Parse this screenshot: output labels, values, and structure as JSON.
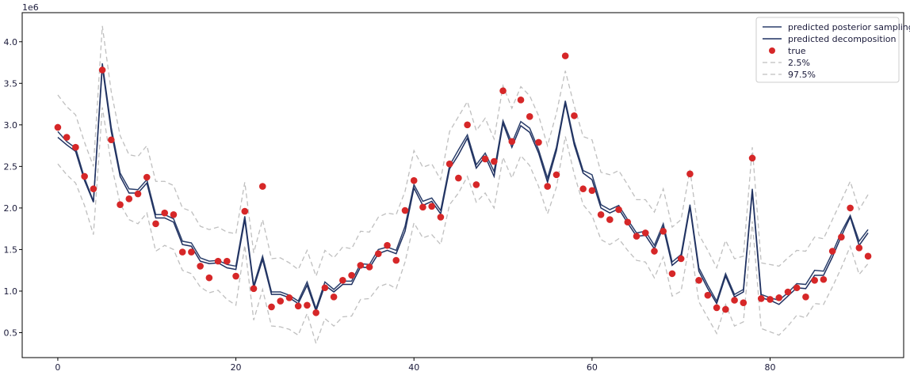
{
  "chart_data": {
    "type": "line",
    "title": "",
    "xlabel": "",
    "ylabel": "",
    "y_offset_label": "1e6",
    "xlim": [
      -4,
      95
    ],
    "ylim": [
      0.2,
      4.35
    ],
    "xticks": [
      0,
      20,
      40,
      60,
      80
    ],
    "yticks": [
      0.5,
      1.0,
      1.5,
      2.0,
      2.5,
      3.0,
      3.5,
      4.0
    ],
    "grid": false,
    "legend_position": "top-right",
    "x": [
      0,
      1,
      2,
      3,
      4,
      5,
      6,
      7,
      8,
      9,
      10,
      11,
      12,
      13,
      14,
      15,
      16,
      17,
      18,
      19,
      20,
      21,
      22,
      23,
      24,
      25,
      26,
      27,
      28,
      29,
      30,
      31,
      32,
      33,
      34,
      35,
      36,
      37,
      38,
      39,
      40,
      41,
      42,
      43,
      44,
      45,
      46,
      47,
      48,
      49,
      50,
      51,
      52,
      53,
      54,
      55,
      56,
      57,
      58,
      59,
      60,
      61,
      62,
      63,
      64,
      65,
      66,
      67,
      68,
      69,
      70,
      71,
      72,
      73,
      74,
      75,
      76,
      77,
      78,
      79,
      80,
      81,
      82,
      83,
      84,
      85,
      86,
      87,
      88,
      89,
      90,
      91
    ],
    "series": [
      {
        "name": "predicted posterior sampling",
        "kind": "line",
        "color": "#2b3f6b",
        "values": [
          2.92,
          2.8,
          2.72,
          2.36,
          2.08,
          3.74,
          2.97,
          2.42,
          2.23,
          2.22,
          2.34,
          1.92,
          1.92,
          1.87,
          1.6,
          1.58,
          1.4,
          1.36,
          1.37,
          1.32,
          1.3,
          1.9,
          1.07,
          1.42,
          0.99,
          0.99,
          0.95,
          0.88,
          1.11,
          0.79,
          1.11,
          1.02,
          1.12,
          1.12,
          1.33,
          1.32,
          1.5,
          1.53,
          1.49,
          1.78,
          2.28,
          2.08,
          2.12,
          1.97,
          2.51,
          2.7,
          2.88,
          2.52,
          2.66,
          2.44,
          3.05,
          2.78,
          3.04,
          2.96,
          2.7,
          2.36,
          2.73,
          3.29,
          2.8,
          2.45,
          2.4,
          2.04,
          1.98,
          2.03,
          1.86,
          1.7,
          1.72,
          1.55,
          1.81,
          1.35,
          1.44,
          2.04,
          1.28,
          1.07,
          0.88,
          1.21,
          0.96,
          1.02,
          2.23,
          0.96,
          0.92,
          0.89,
          0.98,
          1.09,
          1.08,
          1.25,
          1.24,
          1.46,
          1.71,
          1.91,
          1.6,
          1.74
        ]
      },
      {
        "name": "predicted decomposition",
        "kind": "line",
        "color": "#1f3060",
        "values": [
          2.85,
          2.76,
          2.68,
          2.33,
          2.07,
          3.7,
          2.92,
          2.38,
          2.18,
          2.18,
          2.3,
          1.88,
          1.88,
          1.83,
          1.56,
          1.54,
          1.36,
          1.33,
          1.34,
          1.28,
          1.26,
          1.86,
          1.04,
          1.38,
          0.96,
          0.96,
          0.92,
          0.85,
          1.07,
          0.76,
          1.07,
          0.99,
          1.08,
          1.08,
          1.29,
          1.28,
          1.45,
          1.49,
          1.45,
          1.72,
          2.24,
          2.03,
          2.08,
          1.93,
          2.47,
          2.64,
          2.84,
          2.48,
          2.62,
          2.38,
          3.02,
          2.73,
          2.99,
          2.91,
          2.66,
          2.31,
          2.69,
          3.26,
          2.76,
          2.42,
          2.34,
          2.0,
          1.94,
          1.99,
          1.82,
          1.66,
          1.67,
          1.51,
          1.77,
          1.31,
          1.4,
          2.01,
          1.24,
          1.03,
          0.85,
          1.18,
          0.93,
          0.99,
          2.2,
          0.92,
          0.89,
          0.84,
          0.94,
          1.04,
          1.03,
          1.19,
          1.19,
          1.41,
          1.66,
          1.89,
          1.55,
          1.7
        ]
      },
      {
        "name": "true",
        "kind": "scatter",
        "color": "#d62728",
        "values": [
          2.97,
          2.85,
          2.73,
          2.38,
          2.23,
          3.66,
          2.82,
          2.04,
          2.11,
          2.17,
          2.37,
          1.81,
          1.94,
          1.92,
          1.47,
          1.47,
          1.3,
          1.16,
          1.36,
          1.36,
          1.18,
          1.96,
          1.03,
          2.26,
          0.81,
          0.88,
          0.92,
          0.82,
          0.83,
          0.74,
          1.04,
          0.93,
          1.13,
          1.19,
          1.31,
          1.29,
          1.45,
          1.55,
          1.37,
          1.97,
          2.33,
          2.01,
          2.02,
          1.89,
          2.53,
          2.36,
          3.0,
          2.28,
          2.59,
          2.56,
          3.41,
          2.8,
          3.3,
          3.1,
          2.79,
          2.26,
          2.4,
          3.83,
          3.11,
          2.23,
          2.21,
          1.92,
          1.86,
          1.98,
          1.83,
          1.66,
          1.7,
          1.48,
          1.72,
          1.21,
          1.39,
          2.41,
          1.13,
          0.95,
          0.8,
          0.78,
          0.89,
          0.86,
          2.6,
          0.91,
          0.9,
          0.92,
          0.99,
          1.04,
          0.93,
          1.13,
          1.14,
          1.48,
          1.65,
          2.0,
          1.52,
          1.42
        ]
      },
      {
        "name": "2.5%",
        "kind": "dashed",
        "color": "#bfbfbf",
        "values": [
          2.53,
          2.4,
          2.3,
          2.03,
          1.68,
          3.21,
          2.53,
          2.05,
          1.86,
          1.81,
          1.94,
          1.48,
          1.55,
          1.5,
          1.25,
          1.21,
          1.05,
          0.98,
          1.01,
          0.9,
          0.83,
          1.55,
          0.65,
          1.02,
          0.58,
          0.57,
          0.54,
          0.47,
          0.73,
          0.37,
          0.67,
          0.58,
          0.69,
          0.7,
          0.9,
          0.91,
          1.05,
          1.09,
          1.03,
          1.35,
          1.82,
          1.64,
          1.68,
          1.56,
          2.04,
          2.18,
          2.38,
          2.07,
          2.18,
          2.0,
          2.61,
          2.36,
          2.63,
          2.51,
          2.26,
          1.93,
          2.25,
          2.86,
          2.41,
          2.04,
          1.91,
          1.62,
          1.56,
          1.63,
          1.49,
          1.37,
          1.35,
          1.16,
          1.41,
          0.94,
          1.0,
          1.6,
          0.87,
          0.68,
          0.49,
          0.84,
          0.58,
          0.63,
          1.84,
          0.55,
          0.51,
          0.47,
          0.58,
          0.71,
          0.68,
          0.85,
          0.84,
          1.05,
          1.28,
          1.54,
          1.2,
          1.33
        ]
      },
      {
        "name": "97.5%",
        "kind": "dashed",
        "color": "#bfbfbf",
        "values": [
          3.36,
          3.22,
          3.12,
          2.79,
          2.5,
          4.19,
          3.4,
          2.87,
          2.64,
          2.62,
          2.75,
          2.32,
          2.32,
          2.27,
          2.0,
          1.96,
          1.78,
          1.74,
          1.77,
          1.71,
          1.69,
          2.31,
          1.46,
          1.86,
          1.39,
          1.4,
          1.34,
          1.26,
          1.49,
          1.18,
          1.49,
          1.4,
          1.53,
          1.51,
          1.72,
          1.71,
          1.89,
          1.94,
          1.92,
          2.2,
          2.69,
          2.49,
          2.53,
          2.34,
          2.92,
          3.1,
          3.28,
          2.93,
          3.08,
          2.83,
          3.47,
          3.2,
          3.46,
          3.35,
          3.11,
          2.75,
          3.14,
          3.65,
          3.23,
          2.86,
          2.82,
          2.43,
          2.4,
          2.45,
          2.28,
          2.1,
          2.1,
          1.95,
          2.23,
          1.77,
          1.86,
          2.46,
          1.68,
          1.49,
          1.28,
          1.61,
          1.39,
          1.42,
          2.73,
          1.34,
          1.32,
          1.3,
          1.4,
          1.49,
          1.48,
          1.65,
          1.63,
          1.86,
          2.09,
          2.32,
          1.98,
          2.16
        ]
      }
    ]
  }
}
